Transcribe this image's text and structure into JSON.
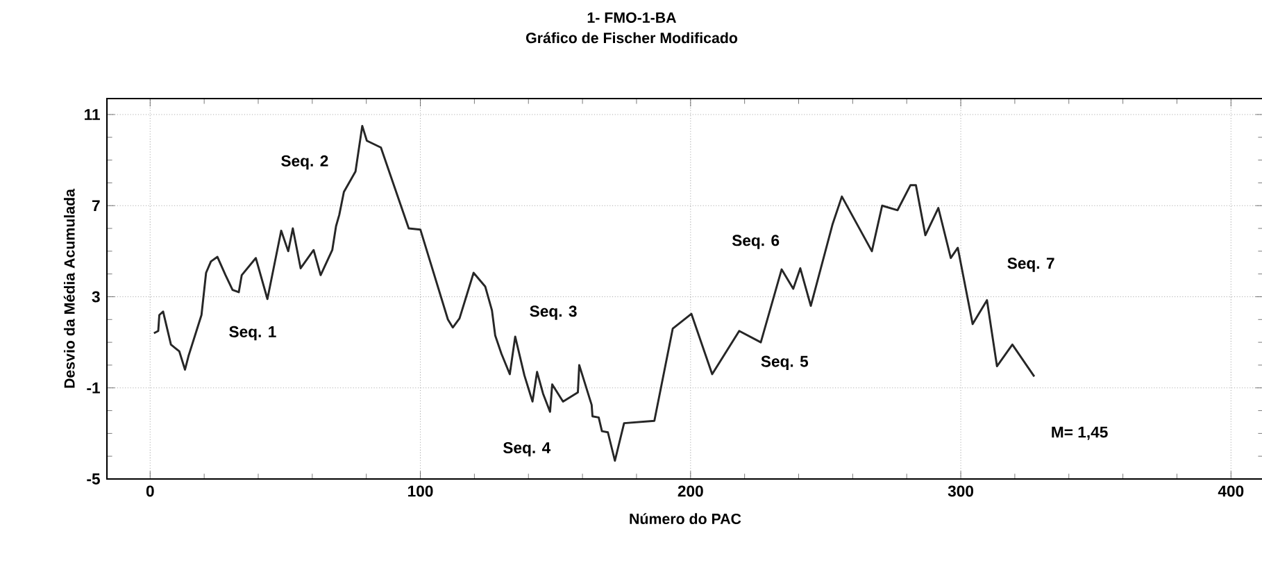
{
  "chart_data": {
    "type": "line",
    "title": "1- FMO-1-BA",
    "subtitle": "Gráfico de Fischer Modificado",
    "xlabel": "Número  do PAC",
    "ylabel": "Desvio da Média Acumulada",
    "xlim": [
      -16,
      412
    ],
    "ylim": [
      -5,
      11.7
    ],
    "xticks": [
      0,
      100,
      200,
      300,
      400
    ],
    "yticks": [
      -5,
      -1,
      3,
      7,
      11
    ],
    "grid": true,
    "series": [
      {
        "color": "#262626",
        "x": [
          1.4,
          3,
          3.4,
          4.8,
          7.7,
          10.8,
          12.9,
          14.2,
          19,
          20.7,
          22.5,
          24.9,
          27.9,
          30.5,
          32.8,
          33.9,
          39.1,
          43.4,
          48.5,
          51.1,
          52.8,
          55.7,
          60.5,
          63.1,
          67.4,
          68.8,
          70,
          71.7,
          76,
          78.5,
          80.2,
          85.4,
          95.7,
          100,
          110.2,
          112,
          114.5,
          119.7,
          124,
          126.5,
          127.7,
          130,
          133.1,
          135.1,
          138.5,
          141.5,
          143.2,
          145.4,
          148,
          148.8,
          152.8,
          158.3,
          158.8,
          163.4,
          163.7,
          166,
          167.2,
          169.4,
          172,
          175.4,
          186.6,
          193.4,
          200.3,
          208,
          218,
          226,
          233.7,
          238,
          240.6,
          244.5,
          252.6,
          256,
          267.1,
          270.9,
          276.6,
          281.4,
          283.4,
          286.9,
          291.7,
          296.3,
          298.9,
          304.4,
          309.7,
          313.4,
          319.1,
          327.2
        ],
        "values": [
          1.4,
          1.5,
          2.2,
          2.35,
          0.9,
          0.6,
          -0.2,
          0.4,
          2.2,
          4.05,
          4.55,
          4.75,
          3.95,
          3.3,
          3.2,
          3.95,
          4.7,
          2.9,
          5.9,
          5.0,
          6.0,
          4.25,
          5.05,
          3.95,
          5.05,
          6.1,
          6.6,
          7.6,
          8.5,
          10.5,
          9.85,
          9.55,
          6.0,
          5.95,
          2.0,
          1.65,
          2.05,
          4.05,
          3.45,
          2.4,
          1.3,
          0.5,
          -0.4,
          1.25,
          -0.45,
          -1.6,
          -0.3,
          -1.25,
          -2.05,
          -0.85,
          -1.6,
          -1.2,
          0.0,
          -1.75,
          -2.25,
          -2.3,
          -2.9,
          -2.95,
          -4.2,
          -2.55,
          -2.45,
          1.6,
          2.25,
          -0.4,
          1.5,
          1.0,
          4.2,
          3.35,
          4.25,
          2.6,
          6.2,
          7.4,
          5.0,
          7.0,
          6.8,
          7.9,
          7.9,
          5.7,
          6.9,
          4.7,
          5.15,
          1.8,
          2.85,
          -0.05,
          0.9,
          -0.5
        ]
      }
    ],
    "annotations": [
      "Seq. 1",
      "Seq. 2",
      "Seq. 3",
      "Seq. 4",
      "Seq. 5",
      "Seq. 6",
      "Seq. 7",
      "M= 1,45"
    ]
  }
}
